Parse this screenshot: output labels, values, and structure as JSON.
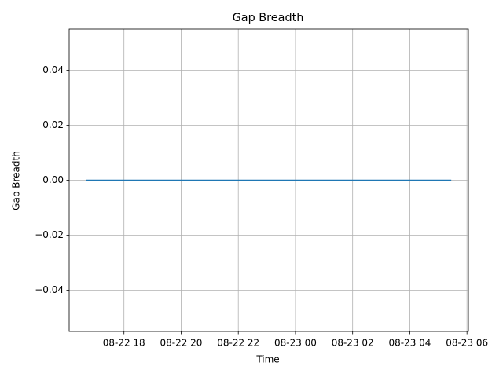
{
  "chart_data": {
    "type": "line",
    "title": "Gap Breadth",
    "xlabel": "Time",
    "ylabel": "Gap Breadth",
    "x": [
      "08-22 16:41",
      "08-23 05:27"
    ],
    "series": [
      {
        "name": "Gap Breadth",
        "color": "#1f77b4",
        "values": [
          0,
          0
        ]
      }
    ],
    "xlim": [
      "08-22 16:05",
      "08-23 06:03"
    ],
    "xticks": [
      {
        "value": "08-22 18:00",
        "label": "08-22 18"
      },
      {
        "value": "08-22 20:00",
        "label": "08-22 20"
      },
      {
        "value": "08-22 22:00",
        "label": "08-22 22"
      },
      {
        "value": "08-23 00:00",
        "label": "08-23 00"
      },
      {
        "value": "08-23 02:00",
        "label": "08-23 02"
      },
      {
        "value": "08-23 04:00",
        "label": "08-23 04"
      },
      {
        "value": "08-23 06:00",
        "label": "08-23 06"
      }
    ],
    "ylim": [
      -0.055,
      0.055
    ],
    "yticks": [
      {
        "value": -0.04,
        "label": "−0.04"
      },
      {
        "value": -0.02,
        "label": "−0.02"
      },
      {
        "value": 0,
        "label": "0.00"
      },
      {
        "value": 0.02,
        "label": "0.02"
      },
      {
        "value": 0.04,
        "label": "0.04"
      }
    ],
    "grid": true
  }
}
